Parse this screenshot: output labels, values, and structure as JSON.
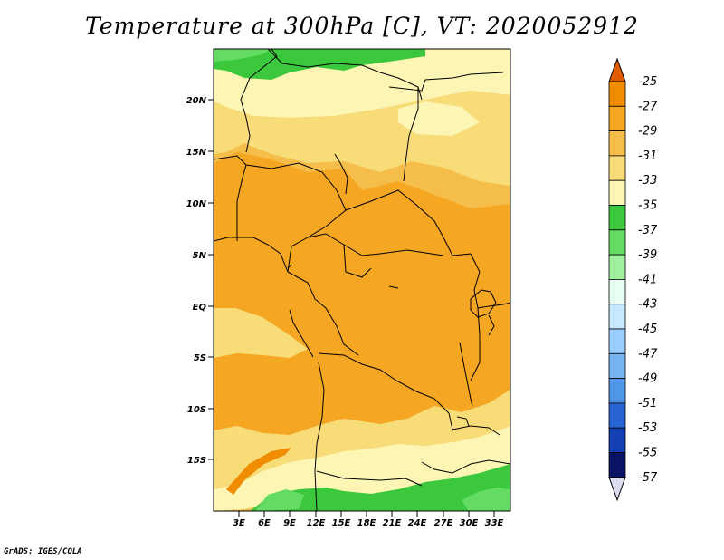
{
  "title": "Temperature at 300hPa [C], VT: 2020052912",
  "credit": "GrADS: IGES/COLA",
  "map": {
    "lat_ticks": [
      "20N",
      "15N",
      "10N",
      "5N",
      "EQ",
      "5S",
      "10S",
      "15S"
    ],
    "lon_ticks": [
      "3E",
      "6E",
      "9E",
      "12E",
      "15E",
      "18E",
      "21E",
      "24E",
      "27E",
      "30E",
      "33E"
    ]
  },
  "colorbar": {
    "labels": [
      "-25",
      "-27",
      "-29",
      "-31",
      "-33",
      "-35",
      "-37",
      "-39",
      "-41",
      "-43",
      "-45",
      "-47",
      "-49",
      "-51",
      "-53",
      "-55",
      "-57"
    ],
    "colors": [
      "#e05a00",
      "#f08c00",
      "#f5a623",
      "#f5be4a",
      "#f8dc78",
      "#fcf5b4",
      "#3cc83c",
      "#64dc64",
      "#a0f0a0",
      "#e6fff0",
      "#c8e8ff",
      "#9ccfff",
      "#78b4f0",
      "#5096e6",
      "#2864d2",
      "#1440b4",
      "#0a1464",
      "#dcdcf0"
    ]
  },
  "colors": {
    "warm_fill": "#f5be4a",
    "cool_band": "#f8dc78",
    "pale_band": "#fcf5b4",
    "green_band": "#3cc83c",
    "light_green": "#64dc64",
    "dark_orange": "#f5a623",
    "border_line": "#000000"
  }
}
